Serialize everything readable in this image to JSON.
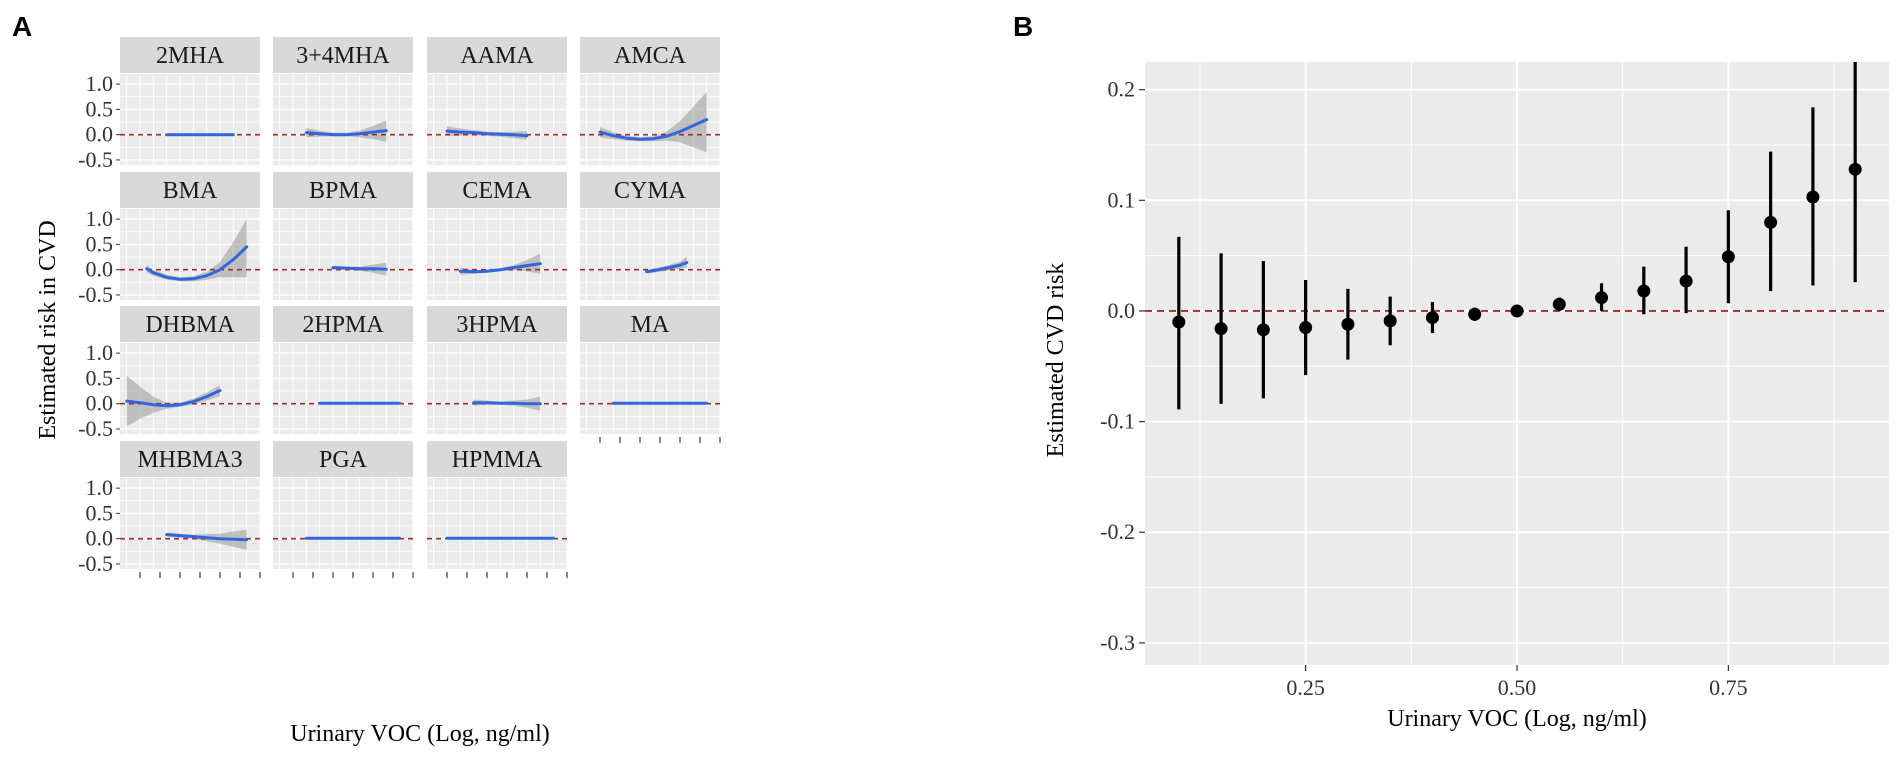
{
  "panel_a_label": "A",
  "panel_b_label": "B",
  "chart_data": [
    {
      "type": "line",
      "panel": "A",
      "facets": [
        {
          "name": "2MHA",
          "x": [
            0.3,
            0.4,
            0.5,
            0.6,
            0.7,
            0.8
          ],
          "y": [
            0,
            0,
            0,
            0,
            0,
            0
          ],
          "lower": [
            -0.02,
            -0.02,
            -0.02,
            -0.02,
            -0.02,
            -0.02
          ],
          "upper": [
            0.02,
            0.02,
            0.02,
            0.02,
            0.02,
            0.02
          ]
        },
        {
          "name": "3+4MHA",
          "x": [
            0.2,
            0.3,
            0.4,
            0.5,
            0.6,
            0.7,
            0.8
          ],
          "y": [
            0.04,
            0.02,
            0.0,
            0.0,
            0.02,
            0.05,
            0.08
          ],
          "lower": [
            -0.05,
            -0.04,
            -0.03,
            -0.03,
            -0.05,
            -0.09,
            -0.14
          ],
          "upper": [
            0.13,
            0.08,
            0.04,
            0.04,
            0.08,
            0.17,
            0.28
          ]
        },
        {
          "name": "AAMA",
          "x": [
            0.1,
            0.2,
            0.3,
            0.4,
            0.5,
            0.6,
            0.7
          ],
          "y": [
            0.07,
            0.05,
            0.04,
            0.02,
            0.01,
            0.0,
            -0.02
          ],
          "lower": [
            -0.03,
            -0.02,
            -0.01,
            -0.02,
            -0.04,
            -0.07,
            -0.1
          ],
          "upper": [
            0.17,
            0.12,
            0.09,
            0.06,
            0.05,
            0.06,
            0.07
          ]
        },
        {
          "name": "AMCA",
          "x": [
            0.1,
            0.2,
            0.3,
            0.4,
            0.5,
            0.6,
            0.7,
            0.8,
            0.9
          ],
          "y": [
            0.05,
            -0.02,
            -0.07,
            -0.09,
            -0.08,
            -0.03,
            0.06,
            0.18,
            0.3
          ],
          "lower": [
            -0.05,
            -0.09,
            -0.12,
            -0.13,
            -0.13,
            -0.12,
            -0.15,
            -0.25,
            -0.35
          ],
          "upper": [
            0.15,
            0.05,
            -0.02,
            -0.05,
            -0.03,
            0.06,
            0.27,
            0.55,
            0.85
          ]
        },
        {
          "name": "BMA",
          "x": [
            0.15,
            0.2,
            0.3,
            0.4,
            0.5,
            0.6,
            0.7,
            0.8,
            0.9
          ],
          "y": [
            0.02,
            -0.06,
            -0.15,
            -0.19,
            -0.18,
            -0.12,
            0.0,
            0.2,
            0.45
          ],
          "lower": [
            -0.05,
            -0.12,
            -0.2,
            -0.23,
            -0.23,
            -0.2,
            -0.15,
            -0.15,
            -0.15
          ],
          "upper": [
            0.09,
            0.0,
            -0.1,
            -0.15,
            -0.13,
            -0.04,
            0.15,
            0.55,
            1.0
          ]
        },
        {
          "name": "BPMA",
          "x": [
            0.4,
            0.5,
            0.6,
            0.7,
            0.8
          ],
          "y": [
            0.04,
            0.03,
            0.02,
            0.02,
            0.01
          ],
          "lower": [
            0.0,
            0.0,
            -0.02,
            -0.06,
            -0.12
          ],
          "upper": [
            0.08,
            0.06,
            0.06,
            0.1,
            0.14
          ]
        },
        {
          "name": "CEMA",
          "x": [
            0.2,
            0.3,
            0.4,
            0.5,
            0.6,
            0.7,
            0.8
          ],
          "y": [
            -0.03,
            -0.04,
            -0.03,
            0.0,
            0.04,
            0.08,
            0.12
          ],
          "lower": [
            -0.1,
            -0.08,
            -0.06,
            -0.03,
            -0.01,
            -0.03,
            -0.08
          ],
          "upper": [
            0.04,
            0.0,
            0.0,
            0.03,
            0.09,
            0.19,
            0.32
          ]
        },
        {
          "name": "CYMA",
          "x": [
            0.45,
            0.5,
            0.6,
            0.7,
            0.75
          ],
          "y": [
            -0.04,
            -0.02,
            0.03,
            0.09,
            0.14
          ],
          "lower": [
            -0.08,
            -0.06,
            -0.02,
            0.02,
            0.04
          ],
          "upper": [
            0.0,
            0.02,
            0.08,
            0.16,
            0.26
          ]
        },
        {
          "name": "DHBMA",
          "x": [
            0.0,
            0.1,
            0.2,
            0.3,
            0.4,
            0.5,
            0.6,
            0.7
          ],
          "y": [
            0.05,
            0.02,
            -0.02,
            -0.04,
            -0.02,
            0.04,
            0.14,
            0.26
          ],
          "lower": [
            -0.45,
            -0.3,
            -0.18,
            -0.1,
            -0.06,
            -0.02,
            0.06,
            0.15
          ],
          "upper": [
            0.55,
            0.34,
            0.14,
            0.02,
            0.02,
            0.1,
            0.22,
            0.37
          ]
        },
        {
          "name": "2HPMA",
          "x": [
            0.3,
            0.4,
            0.5,
            0.6,
            0.7,
            0.8,
            0.9
          ],
          "y": [
            0.01,
            0.01,
            0.01,
            0.01,
            0.01,
            0.01,
            0.01
          ],
          "lower": [
            -0.01,
            -0.01,
            -0.01,
            -0.01,
            -0.01,
            -0.01,
            -0.01
          ],
          "upper": [
            0.03,
            0.03,
            0.03,
            0.03,
            0.03,
            0.03,
            0.03
          ]
        },
        {
          "name": "3HPMA",
          "x": [
            0.3,
            0.4,
            0.5,
            0.6,
            0.7,
            0.8
          ],
          "y": [
            0.02,
            0.02,
            0.01,
            0.01,
            0.0,
            0.0
          ],
          "lower": [
            -0.04,
            -0.02,
            -0.02,
            -0.04,
            -0.08,
            -0.14
          ],
          "upper": [
            0.08,
            0.06,
            0.04,
            0.06,
            0.08,
            0.14
          ]
        },
        {
          "name": "MA",
          "x": [
            0.2,
            0.3,
            0.4,
            0.5,
            0.6,
            0.7,
            0.8,
            0.9
          ],
          "y": [
            0.01,
            0.01,
            0.01,
            0.01,
            0.01,
            0.01,
            0.01,
            0.01
          ],
          "lower": [
            -0.01,
            -0.01,
            -0.01,
            -0.01,
            -0.01,
            -0.01,
            -0.01,
            -0.01
          ],
          "upper": [
            0.03,
            0.03,
            0.03,
            0.03,
            0.03,
            0.03,
            0.03,
            0.03
          ]
        },
        {
          "name": "MHBMA3",
          "x": [
            0.3,
            0.4,
            0.5,
            0.6,
            0.7,
            0.8,
            0.9
          ],
          "y": [
            0.08,
            0.06,
            0.04,
            0.02,
            0.0,
            -0.01,
            -0.02
          ],
          "lower": [
            0.04,
            0.02,
            0.0,
            -0.05,
            -0.1,
            -0.16,
            -0.22
          ],
          "upper": [
            0.12,
            0.1,
            0.08,
            0.09,
            0.1,
            0.14,
            0.18
          ]
        },
        {
          "name": "PGA",
          "x": [
            0.2,
            0.3,
            0.4,
            0.5,
            0.6,
            0.7,
            0.8,
            0.9
          ],
          "y": [
            0.01,
            0.01,
            0.01,
            0.01,
            0.01,
            0.01,
            0.01,
            0.01
          ],
          "lower": [
            -0.01,
            -0.01,
            -0.01,
            -0.01,
            -0.01,
            -0.01,
            -0.01,
            -0.01
          ],
          "upper": [
            0.03,
            0.03,
            0.03,
            0.03,
            0.03,
            0.03,
            0.03,
            0.03
          ]
        },
        {
          "name": "HPMMA",
          "x": [
            0.1,
            0.2,
            0.3,
            0.4,
            0.5,
            0.6,
            0.7,
            0.8,
            0.9
          ],
          "y": [
            0.01,
            0.01,
            0.01,
            0.01,
            0.01,
            0.01,
            0.01,
            0.01,
            0.01
          ],
          "lower": [
            -0.01,
            -0.01,
            -0.01,
            -0.01,
            -0.01,
            -0.01,
            -0.01,
            -0.01,
            -0.01
          ],
          "upper": [
            0.03,
            0.03,
            0.03,
            0.03,
            0.03,
            0.03,
            0.03,
            0.03,
            0.03
          ]
        }
      ],
      "yticks": [
        "1.0",
        "0.5",
        "0.0",
        "-0.5"
      ],
      "ytick_values": [
        1.0,
        0.5,
        0.0,
        -0.5
      ],
      "ylim": [
        -0.6,
        1.2
      ],
      "xlim": [
        -0.05,
        1.0
      ],
      "ylabel": "Estimated risk in CVD",
      "xlabel": "Urinary VOC (Log, ng/ml)",
      "reference_line": 0,
      "colors": {
        "line": "#3366dd",
        "band": "#999999",
        "reference": "#a52a2a",
        "strip": "#d9d9d9",
        "panel": "#ebebeb",
        "grid": "#ffffff"
      }
    },
    {
      "type": "scatter",
      "panel": "B",
      "x": [
        0.1,
        0.15,
        0.2,
        0.25,
        0.3,
        0.35,
        0.4,
        0.45,
        0.5,
        0.55,
        0.6,
        0.65,
        0.7,
        0.75,
        0.8,
        0.85,
        0.9
      ],
      "y": [
        -0.01,
        -0.016,
        -0.017,
        -0.015,
        -0.012,
        -0.009,
        -0.006,
        -0.003,
        0.0,
        0.006,
        0.012,
        0.018,
        0.027,
        0.049,
        0.08,
        0.103,
        0.128
      ],
      "lower": [
        -0.089,
        -0.084,
        -0.079,
        -0.058,
        -0.044,
        -0.031,
        -0.02,
        -0.009,
        -0.003,
        0.0,
        0.0,
        -0.003,
        -0.002,
        0.007,
        0.018,
        0.023,
        0.026
      ],
      "upper": [
        0.067,
        0.052,
        0.045,
        0.028,
        0.02,
        0.013,
        0.008,
        0.003,
        0.003,
        0.012,
        0.025,
        0.04,
        0.058,
        0.091,
        0.144,
        0.184,
        0.23
      ],
      "yticks": [
        "0.2",
        "0.1",
        "0.0",
        "-0.1",
        "-0.2",
        "-0.3"
      ],
      "ytick_values": [
        0.2,
        0.1,
        0.0,
        -0.1,
        -0.2,
        -0.3
      ],
      "xticks": [
        "0.25",
        "0.50",
        "0.75"
      ],
      "xtick_values": [
        0.25,
        0.5,
        0.75
      ],
      "ylim": [
        -0.32,
        0.225
      ],
      "xlim": [
        0.06,
        0.94
      ],
      "ylabel": "Estimated CVD risk",
      "xlabel": "Urinary VOC (Log, ng/ml)",
      "reference_line": 0,
      "colors": {
        "point": "#000000",
        "reference": "#a52a2a",
        "panel": "#ebebeb",
        "grid": "#ffffff"
      }
    }
  ]
}
